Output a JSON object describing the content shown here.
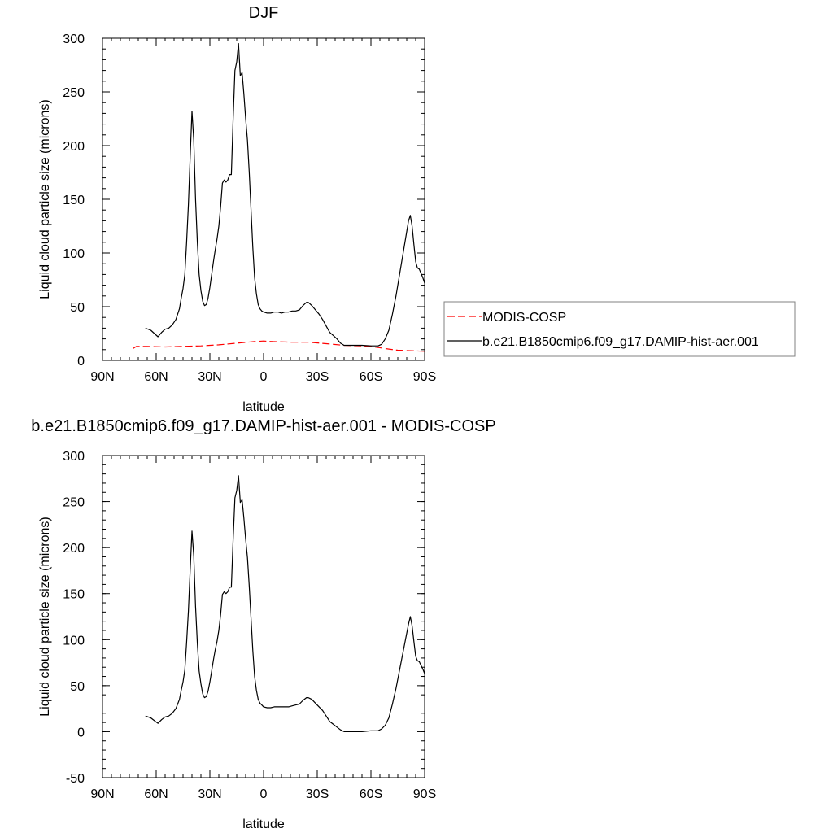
{
  "chart_data": [
    {
      "type": "line",
      "title": "DJF",
      "xlabel": "latitude",
      "ylabel": "Liquid cloud particle size (microns)",
      "xlim": [
        90,
        -90
      ],
      "ylim": [
        0,
        300
      ],
      "x_ticks": [
        90,
        60,
        30,
        0,
        -30,
        -60,
        -90
      ],
      "x_tick_labels": [
        "90N",
        "60N",
        "30N",
        "0",
        "30S",
        "60S",
        "90S"
      ],
      "y_ticks": [
        0,
        50,
        100,
        150,
        200,
        250,
        300
      ],
      "y_tick_labels": [
        "0",
        "50",
        "100",
        "150",
        "200",
        "250",
        "300"
      ],
      "grid": false,
      "legend": {
        "placement": "right",
        "entries": [
          {
            "label": "MODIS-COSP",
            "color": "#ff0000",
            "dash": "dashed"
          },
          {
            "label": "b.e21.B1850cmip6.f09_g17.DAMIP-hist-aer.001",
            "color": "#000000",
            "dash": "solid"
          }
        ]
      },
      "series": [
        {
          "name": "MODIS-COSP",
          "color": "#ff0000",
          "dash": "dashed",
          "points": [
            [
              73,
              11
            ],
            [
              71,
              13
            ],
            [
              65,
              13
            ],
            [
              55,
              12.5
            ],
            [
              45,
              13
            ],
            [
              35,
              13.5
            ],
            [
              25,
              14.5
            ],
            [
              15,
              16
            ],
            [
              5,
              17.5
            ],
            [
              0,
              18
            ],
            [
              -5,
              17.5
            ],
            [
              -15,
              17
            ],
            [
              -25,
              17
            ],
            [
              -35,
              15.5
            ],
            [
              -45,
              14
            ],
            [
              -55,
              13.5
            ],
            [
              -62,
              12.5
            ],
            [
              -70,
              10.5
            ],
            [
              -75,
              9.5
            ],
            [
              -82,
              9
            ],
            [
              -90,
              8.5
            ]
          ]
        },
        {
          "name": "b.e21.B1850cmip6.f09_g17.DAMIP-hist-aer.001",
          "color": "#000000",
          "dash": "solid",
          "points": [
            [
              66,
              30
            ],
            [
              63,
              28
            ],
            [
              61,
              25
            ],
            [
              59,
              22
            ],
            [
              57,
              26
            ],
            [
              55,
              29
            ],
            [
              53,
              30
            ],
            [
              51,
              33
            ],
            [
              49,
              38
            ],
            [
              47,
              48
            ],
            [
              46,
              58
            ],
            [
              45,
              67
            ],
            [
              44,
              80
            ],
            [
              43,
              110
            ],
            [
              42,
              145
            ],
            [
              41,
              190
            ],
            [
              40,
              232
            ],
            [
              39,
              205
            ],
            [
              38,
              150
            ],
            [
              37,
              110
            ],
            [
              36,
              80
            ],
            [
              35,
              65
            ],
            [
              34,
              55
            ],
            [
              33,
              51
            ],
            [
              32,
              52
            ],
            [
              31,
              58
            ],
            [
              30,
              68
            ],
            [
              29,
              80
            ],
            [
              28,
              92
            ],
            [
              27,
              103
            ],
            [
              26,
              113
            ],
            [
              25,
              125
            ],
            [
              24,
              143
            ],
            [
              23,
              165
            ],
            [
              22,
              168
            ],
            [
              21,
              166
            ],
            [
              20,
              168
            ],
            [
              19,
              173
            ],
            [
              18,
              173
            ],
            [
              17,
              225
            ],
            [
              16,
              270
            ],
            [
              15,
              278
            ],
            [
              14,
              295
            ],
            [
              13,
              265
            ],
            [
              12,
              268
            ],
            [
              11,
              248
            ],
            [
              10,
              225
            ],
            [
              9,
              205
            ],
            [
              8,
              175
            ],
            [
              7,
              140
            ],
            [
              6,
              105
            ],
            [
              5,
              77
            ],
            [
              4,
              62
            ],
            [
              3,
              52
            ],
            [
              2,
              48
            ],
            [
              1,
              46
            ],
            [
              0,
              45
            ],
            [
              -2,
              44
            ],
            [
              -4,
              44
            ],
            [
              -6,
              45
            ],
            [
              -8,
              45
            ],
            [
              -10,
              44
            ],
            [
              -12,
              45
            ],
            [
              -14,
              45
            ],
            [
              -16,
              46
            ],
            [
              -18,
              46
            ],
            [
              -20,
              47
            ],
            [
              -22,
              51
            ],
            [
              -24,
              54
            ],
            [
              -25,
              54
            ],
            [
              -27,
              51
            ],
            [
              -29,
              47
            ],
            [
              -31,
              43
            ],
            [
              -33,
              38
            ],
            [
              -35,
              32
            ],
            [
              -37,
              26
            ],
            [
              -39,
              23
            ],
            [
              -41,
              20
            ],
            [
              -43,
              16
            ],
            [
              -45,
              14
            ],
            [
              -50,
              14
            ],
            [
              -55,
              14
            ],
            [
              -60,
              13.5
            ],
            [
              -64,
              13.5
            ],
            [
              -66,
              15
            ],
            [
              -68,
              20
            ],
            [
              -70,
              28
            ],
            [
              -72,
              43
            ],
            [
              -74,
              60
            ],
            [
              -76,
              80
            ],
            [
              -78,
              100
            ],
            [
              -80,
              120
            ],
            [
              -81,
              130
            ],
            [
              -82,
              135
            ],
            [
              -83,
              125
            ],
            [
              -84,
              108
            ],
            [
              -85,
              92
            ],
            [
              -86,
              86
            ],
            [
              -87,
              85
            ],
            [
              -88,
              81
            ],
            [
              -89,
              77
            ],
            [
              -90,
              72
            ]
          ]
        }
      ]
    },
    {
      "type": "line",
      "title": "b.e21.B1850cmip6.f09_g17.DAMIP-hist-aer.001 - MODIS-COSP",
      "xlabel": "latitude",
      "ylabel": "Liquid cloud particle size (microns)",
      "xlim": [
        90,
        -90
      ],
      "ylim": [
        -50,
        300
      ],
      "x_ticks": [
        90,
        60,
        30,
        0,
        -30,
        -60,
        -90
      ],
      "x_tick_labels": [
        "90N",
        "60N",
        "30N",
        "0",
        "30S",
        "60S",
        "90S"
      ],
      "y_ticks": [
        -50,
        0,
        50,
        100,
        150,
        200,
        250,
        300
      ],
      "y_tick_labels": [
        "-50",
        "0",
        "50",
        "100",
        "150",
        "200",
        "250",
        "300"
      ],
      "grid": false,
      "series": [
        {
          "color": "#000000",
          "dash": "solid",
          "points": [
            [
              66,
              17
            ],
            [
              63,
              15
            ],
            [
              61,
              12
            ],
            [
              59,
              9
            ],
            [
              57,
              13
            ],
            [
              55,
              16
            ],
            [
              53,
              17
            ],
            [
              51,
              20
            ],
            [
              49,
              25
            ],
            [
              47,
              35
            ],
            [
              46,
              45
            ],
            [
              45,
              54
            ],
            [
              44,
              67
            ],
            [
              43,
              97
            ],
            [
              42,
              131
            ],
            [
              41,
              176
            ],
            [
              40,
              218
            ],
            [
              39,
              191
            ],
            [
              38,
              136
            ],
            [
              37,
              96
            ],
            [
              36,
              66
            ],
            [
              35,
              52
            ],
            [
              34,
              41
            ],
            [
              33,
              37
            ],
            [
              32,
              38
            ],
            [
              31,
              44
            ],
            [
              30,
              54
            ],
            [
              29,
              66
            ],
            [
              28,
              78
            ],
            [
              27,
              89
            ],
            [
              26,
              98
            ],
            [
              25,
              110
            ],
            [
              24,
              127
            ],
            [
              23,
              149
            ],
            [
              22,
              152
            ],
            [
              21,
              150
            ],
            [
              20,
              152
            ],
            [
              19,
              157
            ],
            [
              18,
              157
            ],
            [
              17,
              209
            ],
            [
              16,
              254
            ],
            [
              15,
              262
            ],
            [
              14,
              278
            ],
            [
              13,
              249
            ],
            [
              12,
              252
            ],
            [
              11,
              232
            ],
            [
              10,
              209
            ],
            [
              9,
              189
            ],
            [
              8,
              158
            ],
            [
              7,
              123
            ],
            [
              6,
              88
            ],
            [
              5,
              60
            ],
            [
              4,
              45
            ],
            [
              3,
              35
            ],
            [
              2,
              31
            ],
            [
              1,
              29
            ],
            [
              0,
              27
            ],
            [
              -2,
              26
            ],
            [
              -4,
              26
            ],
            [
              -6,
              27
            ],
            [
              -8,
              27
            ],
            [
              -10,
              27
            ],
            [
              -12,
              27
            ],
            [
              -14,
              27
            ],
            [
              -16,
              28
            ],
            [
              -18,
              29
            ],
            [
              -20,
              30
            ],
            [
              -22,
              34
            ],
            [
              -24,
              37
            ],
            [
              -25,
              37
            ],
            [
              -27,
              35
            ],
            [
              -29,
              31
            ],
            [
              -31,
              27
            ],
            [
              -33,
              23
            ],
            [
              -35,
              17
            ],
            [
              -37,
              11
            ],
            [
              -39,
              8
            ],
            [
              -41,
              5
            ],
            [
              -43,
              2
            ],
            [
              -45,
              0
            ],
            [
              -50,
              0
            ],
            [
              -55,
              0
            ],
            [
              -60,
              1
            ],
            [
              -64,
              1
            ],
            [
              -66,
              3
            ],
            [
              -68,
              7
            ],
            [
              -70,
              15
            ],
            [
              -72,
              30
            ],
            [
              -74,
              47
            ],
            [
              -76,
              67
            ],
            [
              -78,
              87
            ],
            [
              -80,
              107
            ],
            [
              -81,
              117
            ],
            [
              -82,
              125
            ],
            [
              -83,
              115
            ],
            [
              -84,
              98
            ],
            [
              -85,
              82
            ],
            [
              -86,
              77
            ],
            [
              -87,
              76
            ],
            [
              -88,
              72
            ],
            [
              -89,
              68
            ],
            [
              -90,
              63
            ]
          ]
        }
      ]
    }
  ]
}
